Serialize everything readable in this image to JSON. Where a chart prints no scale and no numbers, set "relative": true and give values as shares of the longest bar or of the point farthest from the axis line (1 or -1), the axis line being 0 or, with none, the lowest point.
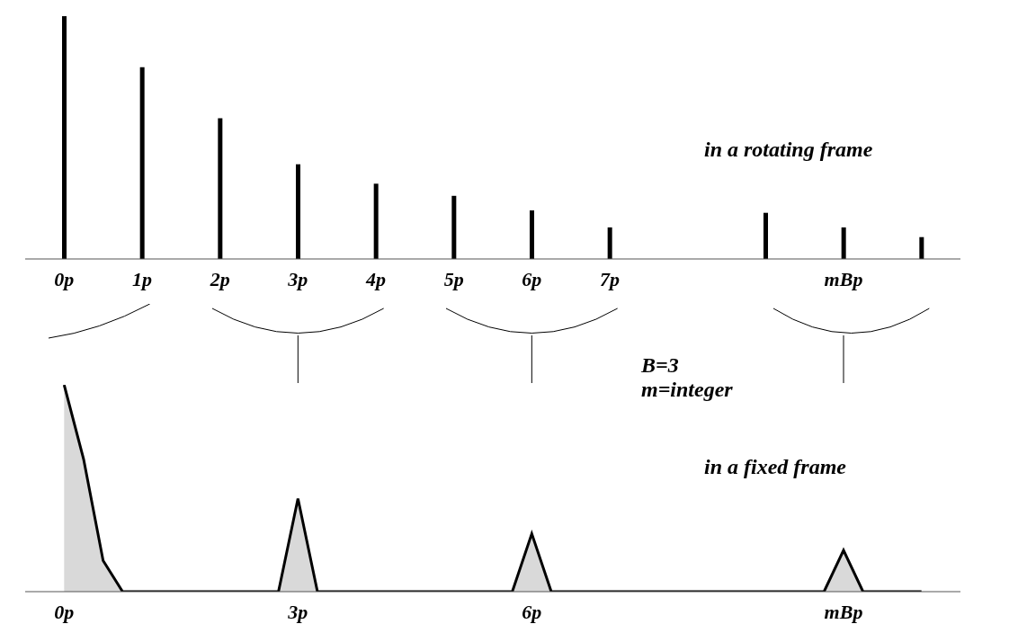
{
  "chart_data": [
    {
      "type": "bar",
      "categories": [
        "0p",
        "1p",
        "2p",
        "3p",
        "4p",
        "5p",
        "6p",
        "7p",
        null,
        null,
        "mBp",
        null
      ],
      "values": [
        1,
        0.79,
        0.58,
        0.39,
        0.31,
        0.26,
        0.2,
        0.13,
        null,
        0.19,
        0.13,
        0.09
      ],
      "color": "#000000",
      "relative": true,
      "annotations": [
        "in a rotating frame"
      ]
    },
    {
      "type": "area",
      "categories": [
        "0p",
        null,
        null,
        null,
        null,
        null,
        null,
        null,
        null,
        null,
        null,
        null,
        "3p",
        null,
        null,
        null,
        null,
        null,
        null,
        null,
        null,
        null,
        null,
        null,
        "6p",
        null,
        null,
        null,
        null,
        null,
        null,
        null,
        null,
        null,
        null,
        null,
        null,
        null,
        null,
        null,
        "mBp",
        null,
        null,
        null,
        null
      ],
      "values": [
        1,
        0.64,
        0.15,
        0,
        0,
        0,
        0,
        0,
        0,
        0,
        0,
        0,
        0.45,
        0,
        0,
        0,
        0,
        0,
        0,
        0,
        0,
        0,
        0,
        0,
        0.28,
        0,
        0,
        0,
        0,
        0,
        0,
        0,
        0,
        0,
        0,
        0,
        0,
        0,
        0,
        0,
        0.2,
        0,
        0,
        0,
        0
      ],
      "color": "#d9d9d9",
      "relative": true,
      "annotations": [
        "B=3",
        "m=integer",
        "in a fixed frame"
      ]
    }
  ]
}
